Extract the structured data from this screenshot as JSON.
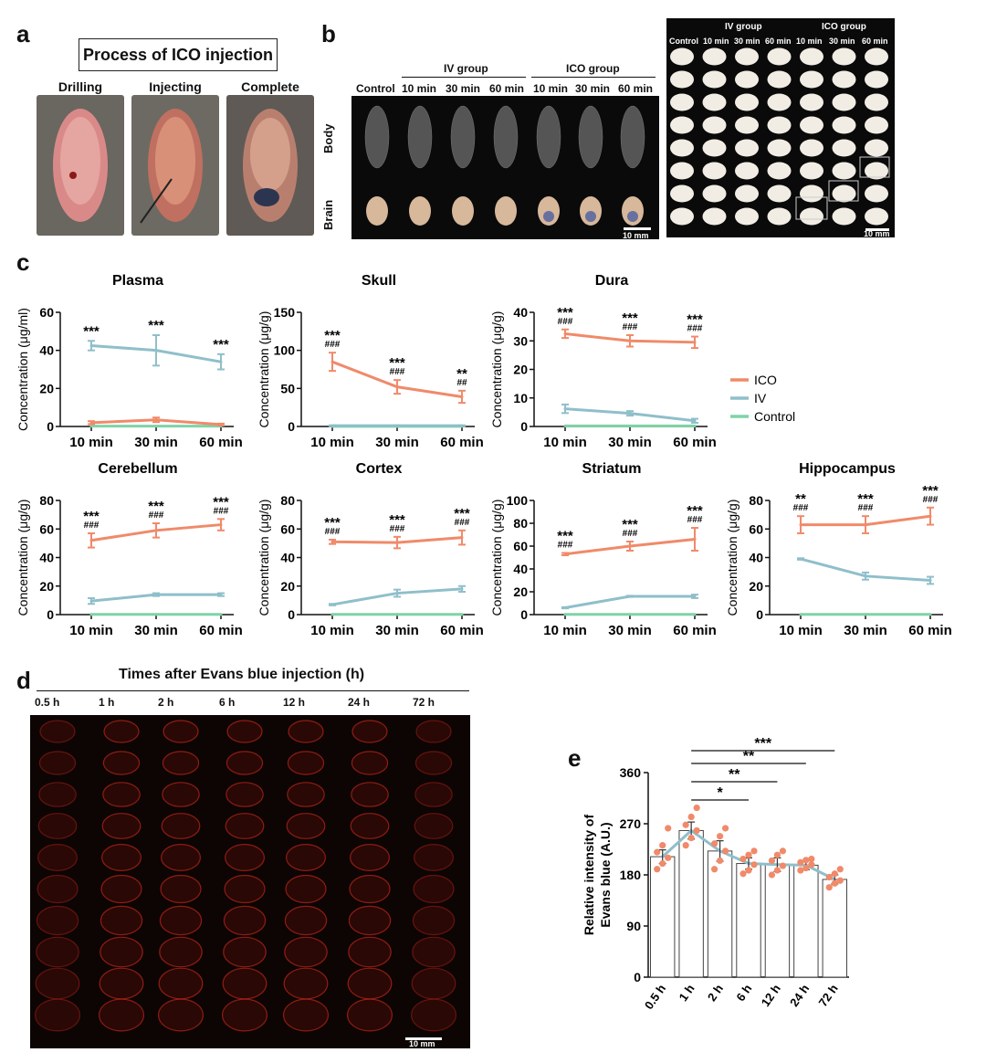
{
  "panels": {
    "a": {
      "label": "a",
      "title": "Process of  ICO injection",
      "steps": [
        "Drilling",
        "Injecting",
        "Complete"
      ]
    },
    "b": {
      "label": "b",
      "left": {
        "columns": [
          "Control",
          "10 min",
          "30 min",
          "60 min",
          "10 min",
          "30 min",
          "60 min"
        ],
        "groups": [
          "IV group",
          "ICO group"
        ],
        "rows": [
          "Body",
          "Brain"
        ],
        "scale": "10 mm"
      },
      "right": {
        "columns": [
          "Control",
          "10 min",
          "30 min",
          "60 min",
          "10 min",
          "30 min",
          "60 min"
        ],
        "groups": [
          "IV group",
          "ICO group"
        ],
        "scale": "10 mm"
      }
    },
    "c": {
      "label": "c"
    },
    "d": {
      "label": "d",
      "title": "Times after Evans blue injection (h)",
      "times": [
        "0.5 h",
        "1 h",
        "2 h",
        "6 h",
        "12 h",
        "24 h",
        "72 h"
      ],
      "scale": "10 mm"
    },
    "e": {
      "label": "e"
    }
  },
  "colors": {
    "ico": "#f08a6a",
    "iv": "#8fbfca",
    "control": "#7fd3a6",
    "axis": "#111111",
    "eb_bar_fill": "#ffffff",
    "eb_point": "#f08a6a",
    "eb_line": "#8fbfca",
    "fluor": "#c0261a"
  },
  "chart_data": [
    {
      "id": "plasma",
      "type": "line",
      "title": "Plasma",
      "ylabel": "Concentration (μg/ml)",
      "ylim": [
        0,
        60
      ],
      "yticks": [
        0,
        20,
        40,
        60
      ],
      "categories": [
        "10 min",
        "30 min",
        "60 min"
      ],
      "series": [
        {
          "name": "ICO",
          "values": [
            2,
            3.5,
            1
          ],
          "err": [
            0.8,
            1.2,
            0.5
          ]
        },
        {
          "name": "IV",
          "values": [
            42.5,
            40,
            34
          ],
          "err": [
            2.5,
            8,
            4
          ]
        },
        {
          "name": "Control",
          "values": [
            0.2,
            0.2,
            0.2
          ],
          "err": [
            0,
            0,
            0
          ]
        }
      ],
      "annotations": [
        {
          "top": "***",
          "bottom": ""
        },
        {
          "top": "***",
          "bottom": ""
        },
        {
          "top": "***",
          "bottom": ""
        }
      ]
    },
    {
      "id": "skull",
      "type": "line",
      "title": "Skull",
      "ylabel": "Concentration (μg/g)",
      "ylim": [
        0,
        150
      ],
      "yticks": [
        0,
        50,
        100,
        150
      ],
      "categories": [
        "10 min",
        "30 min",
        "60 min"
      ],
      "series": [
        {
          "name": "ICO",
          "values": [
            85,
            52,
            39
          ],
          "err": [
            12,
            9,
            8
          ]
        },
        {
          "name": "IV",
          "values": [
            1,
            1,
            1
          ],
          "err": [
            0.5,
            0.5,
            0.5
          ]
        },
        {
          "name": "Control",
          "values": [
            0.2,
            0.2,
            0.2
          ],
          "err": [
            0,
            0,
            0
          ]
        }
      ],
      "annotations": [
        {
          "top": "***",
          "bottom": "###"
        },
        {
          "top": "***",
          "bottom": "###"
        },
        {
          "top": "**",
          "bottom": "##"
        }
      ]
    },
    {
      "id": "dura",
      "type": "line",
      "title": "Dura",
      "ylabel": "Concentration (μg/g)",
      "ylim": [
        0,
        40
      ],
      "yticks": [
        0,
        10,
        20,
        30,
        40
      ],
      "categories": [
        "10 min",
        "30 min",
        "60 min"
      ],
      "series": [
        {
          "name": "ICO",
          "values": [
            32.5,
            30,
            29.5
          ],
          "err": [
            1.5,
            2,
            2
          ]
        },
        {
          "name": "IV",
          "values": [
            6.2,
            4.6,
            2
          ],
          "err": [
            1.5,
            0.8,
            0.7
          ]
        },
        {
          "name": "Control",
          "values": [
            0.2,
            0.2,
            0.2
          ],
          "err": [
            0,
            0,
            0
          ]
        }
      ],
      "annotations": [
        {
          "top": "***",
          "bottom": "###"
        },
        {
          "top": "***",
          "bottom": "###"
        },
        {
          "top": "***",
          "bottom": "###"
        }
      ],
      "legend": [
        "ICO",
        "IV",
        "Control"
      ]
    },
    {
      "id": "cerebellum",
      "type": "line",
      "title": "Cerebellum",
      "ylabel": "Concentration (μg/g)",
      "ylim": [
        0,
        80
      ],
      "yticks": [
        0,
        20,
        40,
        60,
        80
      ],
      "categories": [
        "10 min",
        "30 min",
        "60 min"
      ],
      "series": [
        {
          "name": "ICO",
          "values": [
            52,
            59,
            63
          ],
          "err": [
            5,
            5,
            4
          ]
        },
        {
          "name": "IV",
          "values": [
            9.5,
            14,
            14
          ],
          "err": [
            2,
            1,
            1
          ]
        },
        {
          "name": "Control",
          "values": [
            0.2,
            0.2,
            0.2
          ],
          "err": [
            0,
            0,
            0
          ]
        }
      ],
      "annotations": [
        {
          "top": "***",
          "bottom": "###"
        },
        {
          "top": "***",
          "bottom": "###"
        },
        {
          "top": "***",
          "bottom": "###"
        }
      ]
    },
    {
      "id": "cortex",
      "type": "line",
      "title": "Cortex",
      "ylabel": "Concentration (μg/g)",
      "ylim": [
        0,
        80
      ],
      "yticks": [
        0,
        20,
        40,
        60,
        80
      ],
      "categories": [
        "10 min",
        "30 min",
        "60 min"
      ],
      "series": [
        {
          "name": "ICO",
          "values": [
            51,
            50.5,
            54
          ],
          "err": [
            1.5,
            4,
            5
          ]
        },
        {
          "name": "IV",
          "values": [
            7,
            15,
            18
          ],
          "err": [
            0.5,
            2.5,
            2
          ]
        },
        {
          "name": "Control",
          "values": [
            0.2,
            0.2,
            0.2
          ],
          "err": [
            0,
            0,
            0
          ]
        }
      ],
      "annotations": [
        {
          "top": "***",
          "bottom": "###"
        },
        {
          "top": "***",
          "bottom": "###"
        },
        {
          "top": "***",
          "bottom": "###"
        }
      ]
    },
    {
      "id": "striatum",
      "type": "line",
      "title": "Striatum",
      "ylabel": "Concentration (μg/g)",
      "ylim": [
        0,
        100
      ],
      "yticks": [
        0,
        20,
        40,
        60,
        80,
        100
      ],
      "categories": [
        "10 min",
        "30 min",
        "60 min"
      ],
      "series": [
        {
          "name": "ICO",
          "values": [
            53,
            60,
            66
          ],
          "err": [
            1,
            4,
            10
          ]
        },
        {
          "name": "IV",
          "values": [
            6,
            16,
            16
          ],
          "err": [
            0.5,
            0.5,
            1.5
          ]
        },
        {
          "name": "Control",
          "values": [
            0.2,
            0.2,
            0.2
          ],
          "err": [
            0,
            0,
            0
          ]
        }
      ],
      "annotations": [
        {
          "top": "***",
          "bottom": "###"
        },
        {
          "top": "***",
          "bottom": "###"
        },
        {
          "top": "***",
          "bottom": "###"
        }
      ]
    },
    {
      "id": "hippocampus",
      "type": "line",
      "title": "Hippocampus",
      "ylabel": "Concentration (μg/g)",
      "ylim": [
        0,
        80
      ],
      "yticks": [
        0,
        20,
        40,
        60,
        80
      ],
      "categories": [
        "10 min",
        "30 min",
        "60 min"
      ],
      "series": [
        {
          "name": "ICO",
          "values": [
            63,
            63,
            69
          ],
          "err": [
            6,
            6,
            6
          ]
        },
        {
          "name": "IV",
          "values": [
            39,
            27,
            24
          ],
          "err": [
            0.5,
            2.5,
            2.5
          ]
        },
        {
          "name": "Control",
          "values": [
            0.2,
            0.2,
            0.2
          ],
          "err": [
            0,
            0,
            0
          ]
        }
      ],
      "annotations": [
        {
          "top": "**",
          "bottom": "###"
        },
        {
          "top": "***",
          "bottom": "###"
        },
        {
          "top": "***",
          "bottom": "###"
        }
      ]
    },
    {
      "id": "evans",
      "type": "bar",
      "ylabel": "Relative intensity of Evans blue (A.U.)",
      "ylim": [
        0,
        360
      ],
      "yticks": [
        0,
        90,
        180,
        270,
        360
      ],
      "categories": [
        "0.5 h",
        "1 h",
        "2 h",
        "6 h",
        "12 h",
        "24 h",
        "72 h"
      ],
      "values": [
        212,
        258,
        222,
        200,
        198,
        197,
        172
      ],
      "err": [
        12,
        15,
        18,
        10,
        12,
        8,
        8
      ],
      "points": [
        [
          190,
          200,
          210,
          220,
          232,
          262
        ],
        [
          232,
          245,
          258,
          268,
          282,
          298
        ],
        [
          190,
          205,
          222,
          235,
          248,
          262
        ],
        [
          182,
          188,
          198,
          208,
          215,
          222
        ],
        [
          180,
          188,
          196,
          205,
          215,
          222
        ],
        [
          188,
          192,
          198,
          202,
          206,
          208
        ],
        [
          158,
          165,
          170,
          176,
          182,
          190
        ]
      ],
      "comparisons": [
        {
          "from": "1 h",
          "to": "6 h",
          "label": "*"
        },
        {
          "from": "1 h",
          "to": "12 h",
          "label": "**"
        },
        {
          "from": "1 h",
          "to": "24 h",
          "label": "**"
        },
        {
          "from": "1 h",
          "to": "72 h",
          "label": "***"
        }
      ]
    }
  ]
}
